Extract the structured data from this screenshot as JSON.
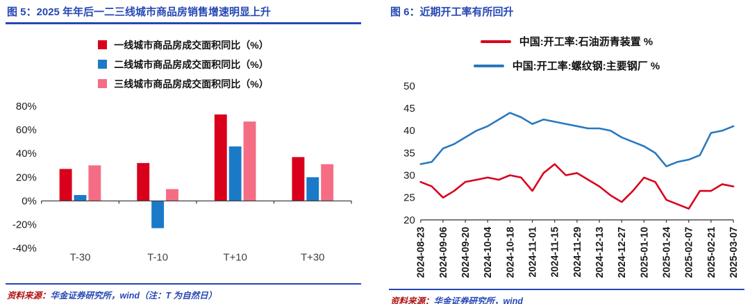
{
  "colors": {
    "accent_blue": "#2547b4",
    "source_red": "#b01414",
    "bar_red": "#d9001b",
    "bar_blue": "#1b7ac8",
    "bar_pink": "#f56d84",
    "line_red": "#d9001b",
    "line_blue": "#2878be",
    "axis": "#404040"
  },
  "figure5": {
    "title": "图 5：2025 年年后一二三线城市商品房销售增速明显上升",
    "source_prefix": "资料来源：",
    "source_body": "华金证券研究所，wind（注：T 为自然日）"
  },
  "figure6": {
    "title": "图 6：近期开工率有所回升",
    "source_prefix": "资料来源：",
    "source_body": "华金证券研究所，wind"
  },
  "chart_data": [
    {
      "type": "bar",
      "title": "2025 年年后一二三线城市商品房销售增速明显上升",
      "categories": [
        "T-30",
        "T-10",
        "T+10",
        "T+30"
      ],
      "series": [
        {
          "name": "一线城市商品房成交面积同比（%）",
          "color": "#d9001b",
          "values": [
            27,
            32,
            73,
            37
          ]
        },
        {
          "name": "二线城市商品房成交面积同比（%）",
          "color": "#1b7ac8",
          "values": [
            5,
            -23,
            46,
            20
          ]
        },
        {
          "name": "三线城市商品房成交面积同比（%）",
          "color": "#f56d84",
          "values": [
            30,
            10,
            67,
            31
          ]
        }
      ],
      "ylim": [
        -40,
        80
      ],
      "ytick_step": 20,
      "ytick_suffix": "%",
      "grid": false,
      "legend_position": "top"
    },
    {
      "type": "line",
      "title": "近期开工率有所回升",
      "x_labels": [
        "2024-08-23",
        "2024-09-06",
        "2024-09-20",
        "2024-10-04",
        "2024-10-18",
        "2024-11-01",
        "2024-11-15",
        "2024-11-29",
        "2024-12-13",
        "2024-12-27",
        "2025-01-10",
        "2025-01-24",
        "2025-02-07",
        "2025-02-21",
        "2025-03-07"
      ],
      "series": [
        {
          "name": "中国:开工率:石油沥青装置 %",
          "color": "#d9001b",
          "values": [
            28.5,
            27.5,
            25.0,
            26.5,
            28.5,
            29.0,
            29.5,
            29.0,
            30.0,
            29.5,
            26.5,
            30.5,
            32.5,
            30.0,
            30.5,
            29.0,
            27.5,
            25.5,
            24.0,
            26.5,
            29.5,
            28.5,
            24.5,
            23.5,
            22.5,
            26.5,
            26.5,
            28.0,
            27.5
          ]
        },
        {
          "name": "中国:开工率:螺纹钢:主要钢厂 %",
          "color": "#2878be",
          "values": [
            32.5,
            33.0,
            36.0,
            37.0,
            38.5,
            40.0,
            41.0,
            42.5,
            44.0,
            43.0,
            41.5,
            42.5,
            42.0,
            41.5,
            41.0,
            40.5,
            40.5,
            40.0,
            38.5,
            37.5,
            36.5,
            35.0,
            32.0,
            33.0,
            33.5,
            34.5,
            39.5,
            40.0,
            41.0
          ]
        }
      ],
      "ylim": [
        20,
        50
      ],
      "ytick_step": 5,
      "grid": false,
      "legend_position": "top"
    }
  ]
}
